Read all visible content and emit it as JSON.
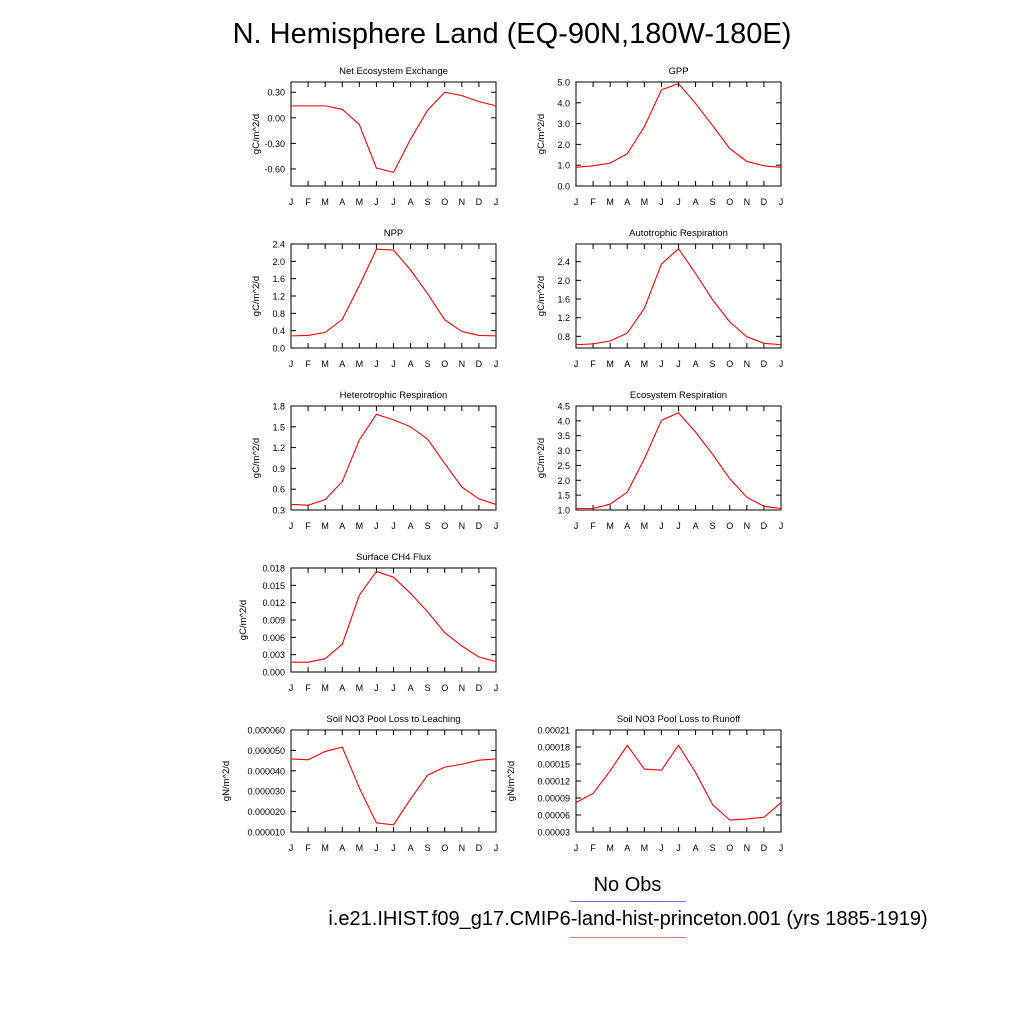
{
  "title": "N. Hemisphere Land (EQ-90N,180W-180E)",
  "legend": [
    {
      "label": "No Obs",
      "color": "#6f6ff0"
    },
    {
      "label": "i.e21.IHIST.f09_g17.CMIP6-land-hist-princeton.001 (yrs 1885-1919)",
      "color": "#ff0000"
    }
  ],
  "series_color": "#ff0000",
  "chart_data": [
    {
      "type": "line",
      "title": "Net Ecosystem Exchange",
      "ylabel": "gC/m^2/d",
      "categories": [
        "J",
        "F",
        "M",
        "A",
        "M",
        "J",
        "J",
        "A",
        "S",
        "O",
        "N",
        "D",
        "J"
      ],
      "values": [
        0.14,
        0.14,
        0.14,
        0.1,
        -0.08,
        -0.59,
        -0.64,
        -0.25,
        0.09,
        0.3,
        0.26,
        0.19,
        0.14
      ],
      "ylim": [
        -0.8,
        0.42
      ],
      "yticks": [
        0.3,
        0.0,
        -0.3,
        -0.6
      ],
      "ytick_labels": [
        "0.30",
        "0.00",
        "-0.30",
        "-0.60"
      ]
    },
    {
      "type": "line",
      "title": "GPP",
      "ylabel": "gC/m^2/d",
      "categories": [
        "J",
        "F",
        "M",
        "A",
        "M",
        "J",
        "J",
        "A",
        "S",
        "O",
        "N",
        "D",
        "J"
      ],
      "values": [
        0.9,
        0.97,
        1.1,
        1.55,
        2.85,
        4.62,
        4.92,
        3.97,
        2.9,
        1.8,
        1.18,
        0.97,
        0.9
      ],
      "ylim": [
        0.0,
        5.0
      ],
      "yticks": [
        0.0,
        1.0,
        2.0,
        3.0,
        4.0,
        5.0
      ],
      "ytick_labels": [
        "0.0",
        "1.0",
        "2.0",
        "3.0",
        "4.0",
        "5.0"
      ]
    },
    {
      "type": "line",
      "title": "NPP",
      "ylabel": "gC/m^2/d",
      "categories": [
        "J",
        "F",
        "M",
        "A",
        "M",
        "J",
        "J",
        "A",
        "S",
        "O",
        "N",
        "D",
        "J"
      ],
      "values": [
        0.28,
        0.29,
        0.36,
        0.66,
        1.44,
        2.28,
        2.26,
        1.8,
        1.25,
        0.65,
        0.38,
        0.29,
        0.28
      ],
      "ylim": [
        0.0,
        2.4
      ],
      "yticks": [
        0.0,
        0.4,
        0.8,
        1.2,
        1.6,
        2.0,
        2.4
      ],
      "ytick_labels": [
        "0.0",
        "0.4",
        "0.8",
        "1.2",
        "1.6",
        "2.0",
        "2.4"
      ]
    },
    {
      "type": "line",
      "title": "Autotrophic Respiration",
      "ylabel": "gC/m^2/d",
      "categories": [
        "J",
        "F",
        "M",
        "A",
        "M",
        "J",
        "J",
        "A",
        "S",
        "O",
        "N",
        "D",
        "J"
      ],
      "values": [
        0.62,
        0.64,
        0.7,
        0.87,
        1.4,
        2.35,
        2.68,
        2.15,
        1.58,
        1.11,
        0.79,
        0.65,
        0.62
      ],
      "ylim": [
        0.55,
        2.78
      ],
      "yticks": [
        0.8,
        1.2,
        1.6,
        2.0,
        2.4
      ],
      "ytick_labels": [
        "0.8",
        "1.2",
        "1.6",
        "2.0",
        "2.4"
      ]
    },
    {
      "type": "line",
      "title": "Heterotrophic Respiration",
      "ylabel": "gC/m^2/d",
      "categories": [
        "J",
        "F",
        "M",
        "A",
        "M",
        "J",
        "J",
        "A",
        "S",
        "O",
        "N",
        "D",
        "J"
      ],
      "values": [
        0.38,
        0.37,
        0.45,
        0.71,
        1.31,
        1.68,
        1.6,
        1.5,
        1.32,
        0.97,
        0.63,
        0.46,
        0.38
      ],
      "ylim": [
        0.3,
        1.8
      ],
      "yticks": [
        0.3,
        0.6,
        0.9,
        1.2,
        1.5,
        1.8
      ],
      "ytick_labels": [
        "0.3",
        "0.6",
        "0.9",
        "1.2",
        "1.5",
        "1.8"
      ]
    },
    {
      "type": "line",
      "title": "Ecosystem Respiration",
      "ylabel": "gC/m^2/d",
      "categories": [
        "J",
        "F",
        "M",
        "A",
        "M",
        "J",
        "J",
        "A",
        "S",
        "O",
        "N",
        "D",
        "J"
      ],
      "values": [
        1.05,
        1.05,
        1.2,
        1.6,
        2.72,
        4.02,
        4.27,
        3.62,
        2.87,
        2.05,
        1.43,
        1.12,
        1.05
      ],
      "ylim": [
        1.0,
        4.5
      ],
      "yticks": [
        1.0,
        1.5,
        2.0,
        2.5,
        3.0,
        3.5,
        4.0,
        4.5
      ],
      "ytick_labels": [
        "1.0",
        "1.5",
        "2.0",
        "2.5",
        "3.0",
        "3.5",
        "4.0",
        "4.5"
      ]
    },
    {
      "type": "line",
      "title": "Surface CH4 Flux",
      "ylabel": "gC/m^2/d",
      "categories": [
        "J",
        "F",
        "M",
        "A",
        "M",
        "J",
        "J",
        "A",
        "S",
        "O",
        "N",
        "D",
        "J"
      ],
      "values": [
        0.0017,
        0.0017,
        0.0023,
        0.0048,
        0.0133,
        0.0174,
        0.0164,
        0.0136,
        0.0104,
        0.0068,
        0.0045,
        0.0026,
        0.0018
      ],
      "ylim": [
        0.0,
        0.018
      ],
      "yticks": [
        0.0,
        0.003,
        0.006,
        0.009,
        0.012,
        0.015,
        0.018
      ],
      "ytick_labels": [
        "0.000",
        "0.003",
        "0.006",
        "0.009",
        "0.012",
        "0.015",
        "0.018"
      ]
    },
    {
      "type": "line",
      "title": "Soil NO3 Pool Loss to Leaching",
      "ylabel": "gN/m^2/d",
      "categories": [
        "J",
        "F",
        "M",
        "A",
        "M",
        "J",
        "J",
        "A",
        "S",
        "O",
        "N",
        "D",
        "J"
      ],
      "values": [
        4.58e-05,
        4.54e-05,
        4.95e-05,
        5.16e-05,
        3.16e-05,
        1.45e-05,
        1.35e-05,
        2.62e-05,
        3.79e-05,
        4.18e-05,
        4.32e-05,
        4.52e-05,
        4.58e-05
      ],
      "ylim": [
        1e-05,
        6e-05
      ],
      "yticks": [
        1e-05,
        2e-05,
        3e-05,
        4e-05,
        5e-05,
        6e-05
      ],
      "ytick_labels": [
        "0.000010",
        "0.000020",
        "0.000030",
        "0.000040",
        "0.000050",
        "0.000060"
      ]
    },
    {
      "type": "line",
      "title": "Soil NO3 Pool Loss to Runoff",
      "ylabel": "gN/m^2/d",
      "categories": [
        "J",
        "F",
        "M",
        "A",
        "M",
        "J",
        "J",
        "A",
        "S",
        "O",
        "N",
        "D",
        "J"
      ],
      "values": [
        8.2e-05,
        9.8e-05,
        0.000138,
        0.000183,
        0.000141,
        0.000139,
        0.000183,
        0.000135,
        7.8e-05,
        5.1e-05,
        5.3e-05,
        5.6e-05,
        8.2e-05
      ],
      "ylim": [
        3e-05,
        0.00021
      ],
      "yticks": [
        3e-05,
        6e-05,
        9e-05,
        0.00012,
        0.00015,
        0.00018,
        0.00021
      ],
      "ytick_labels": [
        "0.00003",
        "0.00006",
        "0.00009",
        "0.00012",
        "0.00015",
        "0.00018",
        "0.00021"
      ]
    }
  ]
}
